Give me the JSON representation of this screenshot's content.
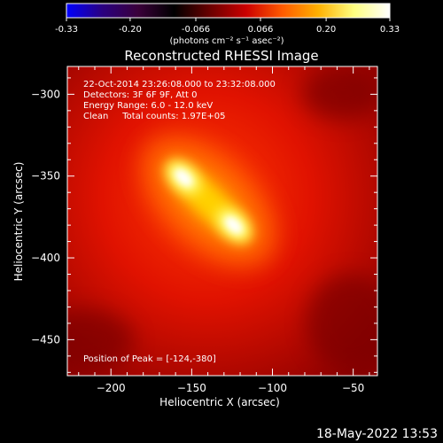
{
  "colorbar": {
    "ticks": [
      "-0.33",
      "-0.20",
      "-0.066",
      "0.066",
      "0.20",
      "0.33"
    ],
    "units_label": "(photons cm⁻² s⁻¹ asec⁻²)",
    "range": [
      -0.33,
      0.33
    ],
    "colors": [
      "#0000ff",
      "#2a0080",
      "#3a003a",
      "#000000",
      "#6a0000",
      "#cc0000",
      "#ff5a00",
      "#ffb000",
      "#ffff80",
      "#ffffff"
    ]
  },
  "plot": {
    "title": "Reconstructed RHESSI Image",
    "xlabel": "Heliocentric X (arcsec)",
    "ylabel": "Heliocentric Y (arcsec)",
    "annotations": [
      "22-Oct-2014 23:26:08.000 to 23:32:08.000",
      "Detectors: 3F 6F 9F, Att 0",
      "Energy Range: 6.0 - 12.0 keV",
      "Clean     Total counts: 1.97E+05"
    ],
    "peak_label": "Position of Peak = [-124,-380]"
  },
  "footer": {
    "timestamp": "18-May-2022 13:53"
  },
  "chart_data": {
    "type": "heatmap",
    "title": "Reconstructed RHESSI Image",
    "xlabel": "Heliocentric X (arcsec)",
    "ylabel": "Heliocentric Y (arcsec)",
    "xlim": [
      -227,
      -35
    ],
    "ylim": [
      -472,
      -283
    ],
    "xticks": [
      -200,
      -150,
      -100,
      -50
    ],
    "yticks": [
      -300,
      -350,
      -400,
      -450
    ],
    "colorbar_range": [
      -0.33,
      0.33
    ],
    "peak": [
      -124,
      -380
    ],
    "sources": [
      {
        "x": -155,
        "y": -351,
        "level": 0.29
      },
      {
        "x": -124,
        "y": -380,
        "level": 0.33
      }
    ]
  }
}
